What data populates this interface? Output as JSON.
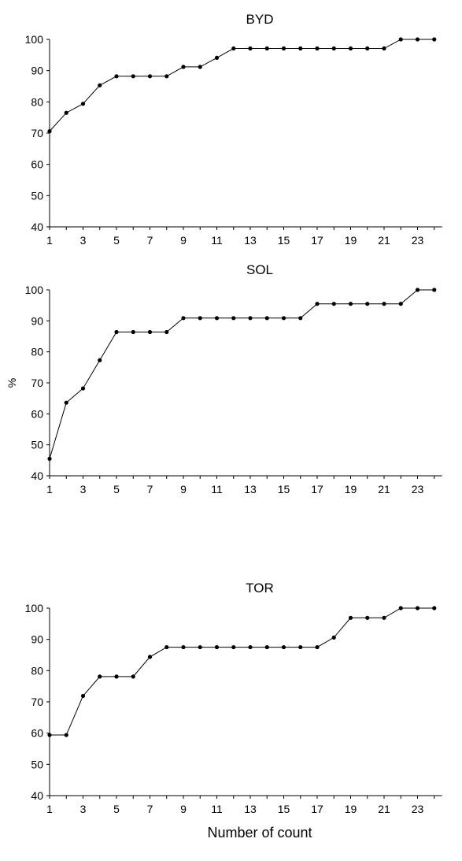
{
  "chart_data": [
    {
      "type": "line",
      "title": "BYD",
      "ylabel": "",
      "xlabel": "",
      "ylim": [
        40,
        100
      ],
      "yticks": [
        40,
        50,
        60,
        70,
        80,
        90,
        100
      ],
      "xticks": [
        1,
        3,
        5,
        7,
        9,
        11,
        13,
        15,
        17,
        19,
        21,
        23
      ],
      "xlim": [
        1,
        24
      ],
      "grid": false,
      "x": [
        1,
        2,
        3,
        4,
        5,
        6,
        7,
        8,
        9,
        10,
        11,
        12,
        13,
        14,
        15,
        16,
        17,
        18,
        19,
        20,
        21,
        22,
        23,
        24
      ],
      "y": [
        70.6,
        76.5,
        79.4,
        85.3,
        88.2,
        88.2,
        88.2,
        88.2,
        91.2,
        91.2,
        94.1,
        97.1,
        97.1,
        97.1,
        97.1,
        97.1,
        97.1,
        97.1,
        97.1,
        97.1,
        97.1,
        100,
        100,
        100
      ]
    },
    {
      "type": "line",
      "title": "SOL",
      "ylabel": "%",
      "xlabel": "",
      "ylim": [
        40,
        100
      ],
      "yticks": [
        40,
        50,
        60,
        70,
        80,
        90,
        100
      ],
      "xticks": [
        1,
        3,
        5,
        7,
        9,
        11,
        13,
        15,
        17,
        19,
        21,
        23
      ],
      "xlim": [
        1,
        24
      ],
      "grid": false,
      "x": [
        1,
        2,
        3,
        4,
        5,
        6,
        7,
        8,
        9,
        10,
        11,
        12,
        13,
        14,
        15,
        16,
        17,
        18,
        19,
        20,
        21,
        22,
        23,
        24
      ],
      "y": [
        45.5,
        63.6,
        68.2,
        77.3,
        86.4,
        86.4,
        86.4,
        86.4,
        90.9,
        90.9,
        90.9,
        90.9,
        90.9,
        90.9,
        90.9,
        90.9,
        95.5,
        95.5,
        95.5,
        95.5,
        95.5,
        95.5,
        100,
        100
      ]
    },
    {
      "type": "line",
      "title": "TOR",
      "ylabel": "",
      "xlabel": "Number of count",
      "ylim": [
        40,
        100
      ],
      "yticks": [
        40,
        50,
        60,
        70,
        80,
        90,
        100
      ],
      "xticks": [
        1,
        3,
        5,
        7,
        9,
        11,
        13,
        15,
        17,
        19,
        21,
        23
      ],
      "xlim": [
        1,
        24
      ],
      "grid": false,
      "x": [
        1,
        2,
        3,
        4,
        5,
        6,
        7,
        8,
        9,
        10,
        11,
        12,
        13,
        14,
        15,
        16,
        17,
        18,
        19,
        20,
        21,
        22,
        23,
        24
      ],
      "y": [
        59.4,
        59.4,
        71.9,
        78.1,
        78.1,
        78.1,
        84.4,
        87.5,
        87.5,
        87.5,
        87.5,
        87.5,
        87.5,
        87.5,
        87.5,
        87.5,
        87.5,
        90.6,
        96.9,
        96.9,
        96.9,
        100,
        100,
        100
      ]
    }
  ]
}
